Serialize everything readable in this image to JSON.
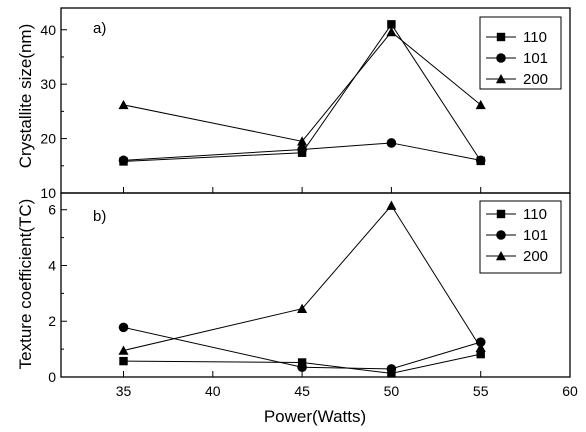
{
  "chart_data": [
    {
      "type": "line",
      "panel_label": "a)",
      "ylabel": "Crystallite size(nm)",
      "xlim": [
        31.5,
        60
      ],
      "ylim": [
        10,
        44
      ],
      "x": [
        35,
        45,
        50,
        55
      ],
      "xticks": [
        35,
        40,
        45,
        50,
        55,
        60
      ],
      "yticks": [
        10,
        20,
        30,
        40
      ],
      "series": [
        {
          "name": "110",
          "marker": "square",
          "values": [
            15.8,
            17.4,
            41.0,
            15.9
          ]
        },
        {
          "name": "101",
          "marker": "circle",
          "values": [
            16.0,
            18.0,
            19.2,
            16.0
          ]
        },
        {
          "name": "200",
          "marker": "triangle",
          "values": [
            26.2,
            19.5,
            39.6,
            26.2
          ]
        }
      ],
      "legend": "top-right"
    },
    {
      "type": "line",
      "panel_label": "b)",
      "ylabel": "Texture coefficient(TC)",
      "xlabel": "Power(Watts)",
      "xlim": [
        31.5,
        60
      ],
      "ylim": [
        0,
        6.6
      ],
      "x": [
        35,
        45,
        50,
        55
      ],
      "xticks": [
        35,
        40,
        45,
        50,
        55,
        60
      ],
      "yticks": [
        0,
        2,
        4,
        6
      ],
      "series": [
        {
          "name": "110",
          "marker": "square",
          "values": [
            0.57,
            0.52,
            0.13,
            0.82
          ]
        },
        {
          "name": "101",
          "marker": "circle",
          "values": [
            1.78,
            0.35,
            0.29,
            1.25
          ]
        },
        {
          "name": "200",
          "marker": "triangle",
          "values": [
            0.95,
            2.45,
            6.15,
            1.05
          ]
        }
      ],
      "legend": "top-right"
    }
  ]
}
